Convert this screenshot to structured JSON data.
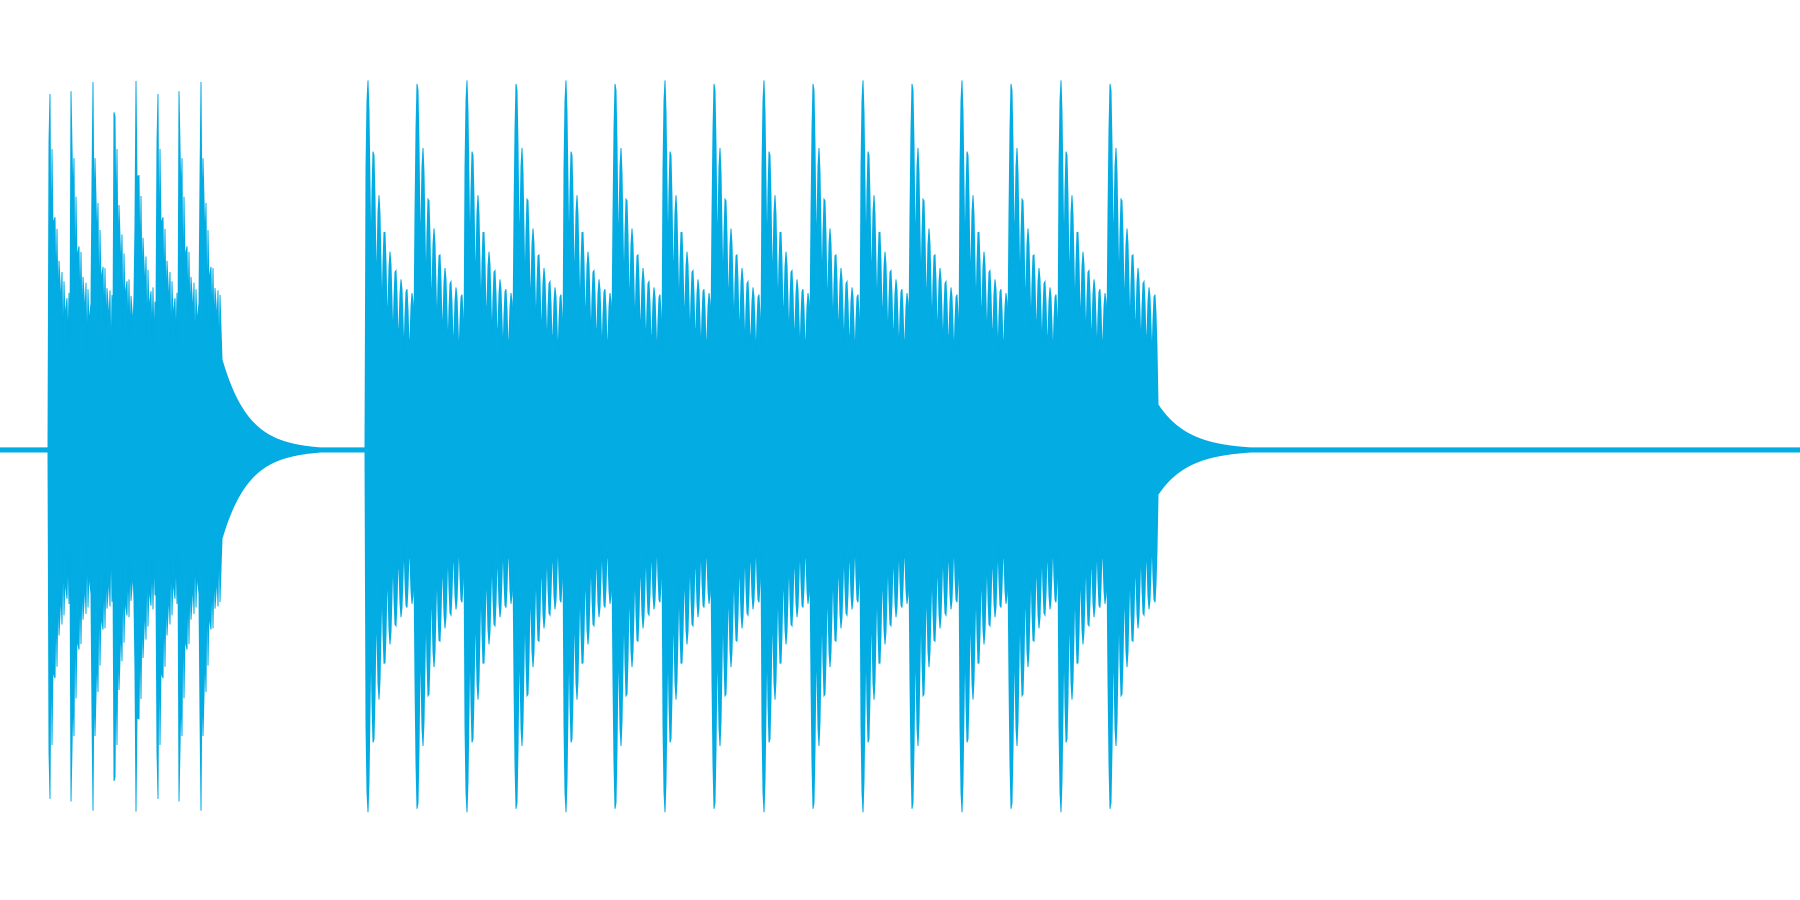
{
  "waveform": {
    "color": "#03ace3",
    "background": "#ffffff",
    "duration_fraction_active": 0.73,
    "segments": [
      {
        "kind": "burst",
        "peaks": 8,
        "start": 0.027,
        "end": 0.123,
        "amplitude": 0.98,
        "decay_tail_end": 0.203
      },
      {
        "kind": "burst",
        "peaks": 16,
        "start": 0.203,
        "end": 0.643,
        "amplitude": 0.98,
        "decay_tail_end": 0.735
      }
    ]
  }
}
